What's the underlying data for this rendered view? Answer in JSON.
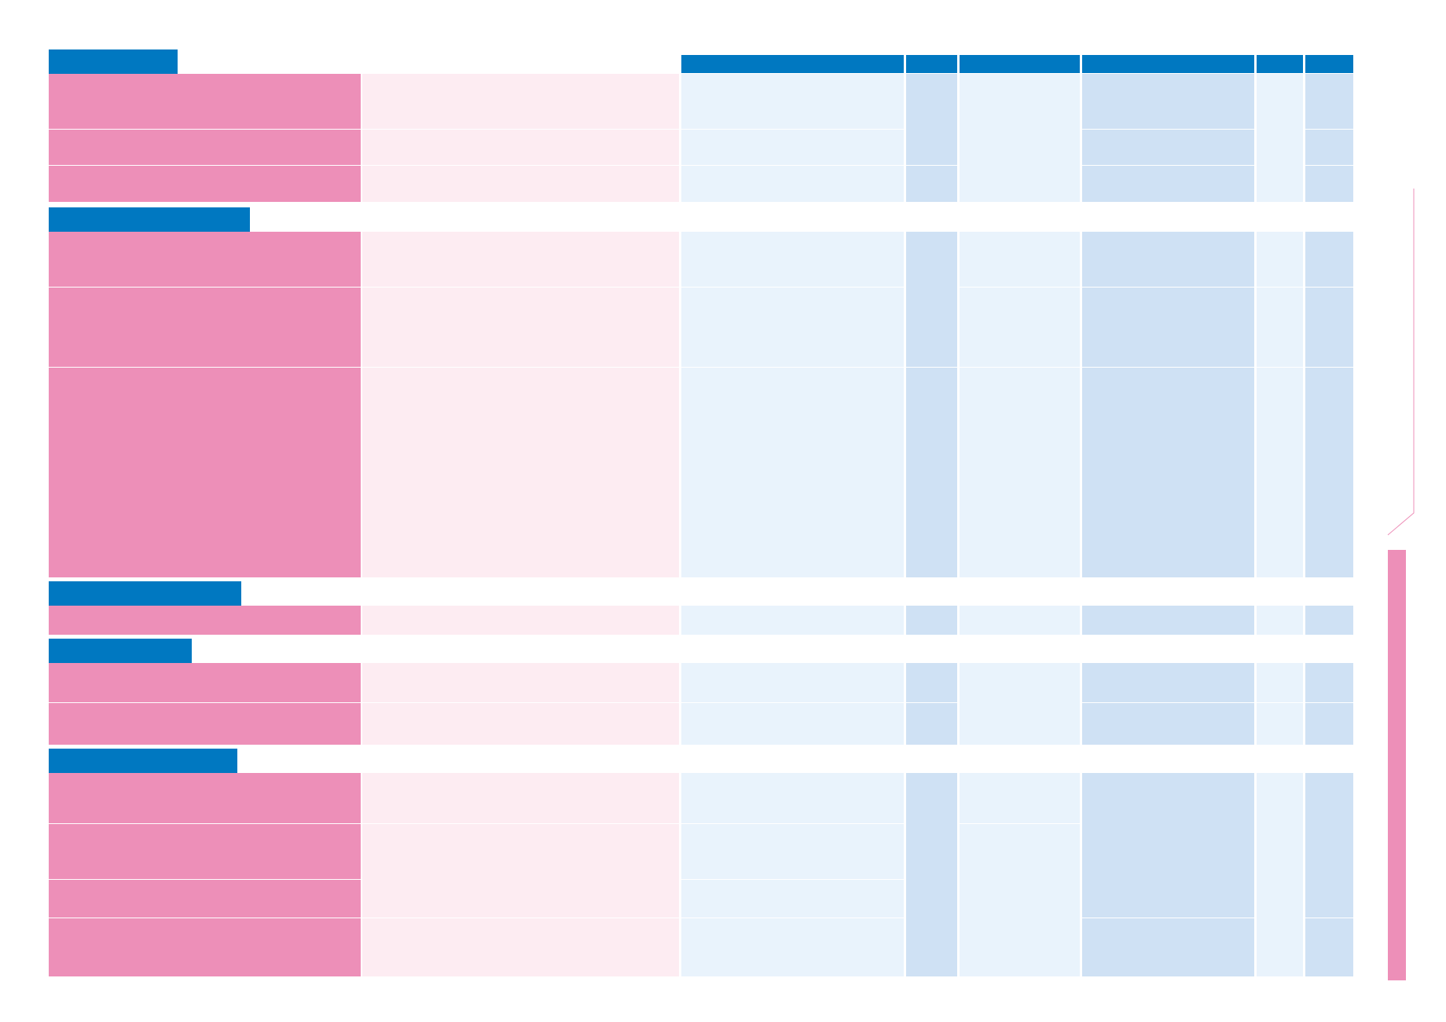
{
  "document": {
    "title": "",
    "sections": [
      {
        "label": ""
      },
      {
        "label": ""
      },
      {
        "label": ""
      },
      {
        "label": ""
      },
      {
        "label": ""
      }
    ],
    "column_headers": [
      "",
      "",
      "",
      "",
      "",
      ""
    ],
    "colors": {
      "header_blue": "#0078c1",
      "category_pink": "#ed8fb8",
      "description_pink_light": "#fdecf2",
      "cell_blue_light": "#e9f3fc",
      "cell_blue_medium": "#cfe1f4",
      "side_panel_pink": "#ed8fb8"
    }
  }
}
